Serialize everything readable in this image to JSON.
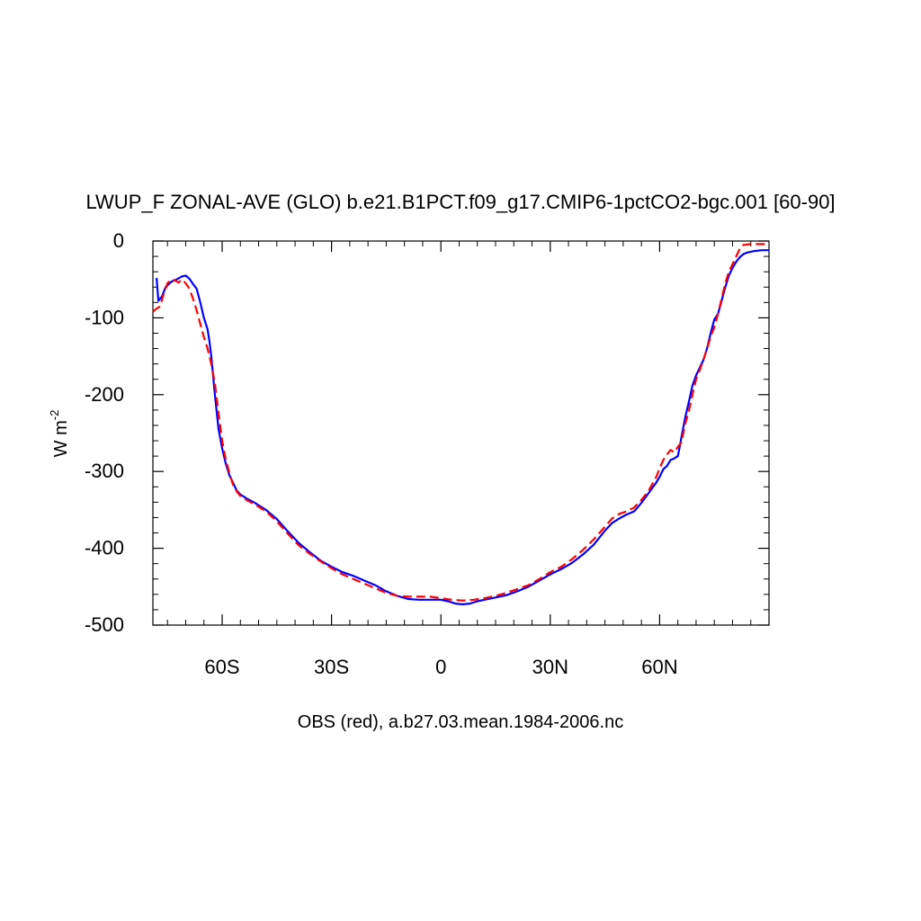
{
  "chart_data": {
    "type": "line",
    "title": "LWUP_F ZONAL-AVE (GLO) b.e21.B1PCT.f09_g17.CMIP6-1pctCO2-bgc.001 [60-90]",
    "xlabel": "OBS (red), a.b27.03.mean.1984-2006.nc",
    "ylabel_base": "W m",
    "ylabel_exponent": "-2",
    "xlim": [
      -79,
      90
    ],
    "ylim": [
      -500,
      0
    ],
    "x_ticks": [
      {
        "value": -60,
        "label": "60S"
      },
      {
        "value": -30,
        "label": "30S"
      },
      {
        "value": 0,
        "label": "0"
      },
      {
        "value": 30,
        "label": "30N"
      },
      {
        "value": 60,
        "label": "60N"
      }
    ],
    "y_ticks": [
      {
        "value": 0,
        "label": "0"
      },
      {
        "value": -100,
        "label": "-100"
      },
      {
        "value": -200,
        "label": "-200"
      },
      {
        "value": -300,
        "label": "-300"
      },
      {
        "value": -400,
        "label": "-400"
      },
      {
        "value": -500,
        "label": "-500"
      }
    ],
    "grid": false,
    "series": [
      {
        "color": "#0000ff",
        "dash": "solid",
        "points": [
          [
            -78,
            -48
          ],
          [
            -77.5,
            -78
          ],
          [
            -76.5,
            -72
          ],
          [
            -75.5,
            -60
          ],
          [
            -74,
            -53
          ],
          [
            -72.5,
            -50
          ],
          [
            -71,
            -46
          ],
          [
            -70,
            -45
          ],
          [
            -69,
            -49
          ],
          [
            -68,
            -56
          ],
          [
            -67,
            -62
          ],
          [
            -66,
            -80
          ],
          [
            -65,
            -100
          ],
          [
            -64,
            -115
          ],
          [
            -63.5,
            -130
          ],
          [
            -63,
            -150
          ],
          [
            -62,
            -200
          ],
          [
            -61,
            -245
          ],
          [
            -60,
            -270
          ],
          [
            -59,
            -290
          ],
          [
            -58,
            -305
          ],
          [
            -57,
            -315
          ],
          [
            -56,
            -325
          ],
          [
            -55,
            -330
          ],
          [
            -53,
            -336
          ],
          [
            -51,
            -341
          ],
          [
            -48,
            -350
          ],
          [
            -45,
            -362
          ],
          [
            -42,
            -378
          ],
          [
            -39,
            -393
          ],
          [
            -36,
            -405
          ],
          [
            -33,
            -416
          ],
          [
            -30,
            -424
          ],
          [
            -27,
            -431
          ],
          [
            -24,
            -436
          ],
          [
            -21,
            -442
          ],
          [
            -18,
            -448
          ],
          [
            -15,
            -456
          ],
          [
            -12,
            -462
          ],
          [
            -9,
            -466
          ],
          [
            -6,
            -467
          ],
          [
            -3,
            -467
          ],
          [
            0,
            -467
          ],
          [
            2,
            -469
          ],
          [
            4,
            -472
          ],
          [
            6,
            -473
          ],
          [
            8,
            -472
          ],
          [
            10,
            -469
          ],
          [
            12,
            -467
          ],
          [
            15,
            -464
          ],
          [
            18,
            -461
          ],
          [
            21,
            -456
          ],
          [
            24,
            -450
          ],
          [
            27,
            -442
          ],
          [
            30,
            -434
          ],
          [
            33,
            -427
          ],
          [
            36,
            -419
          ],
          [
            39,
            -408
          ],
          [
            42,
            -395
          ],
          [
            45,
            -377
          ],
          [
            47,
            -367
          ],
          [
            49,
            -361
          ],
          [
            51,
            -356
          ],
          [
            53,
            -352
          ],
          [
            55,
            -341
          ],
          [
            57,
            -328
          ],
          [
            59,
            -315
          ],
          [
            60,
            -307
          ],
          [
            61,
            -297
          ],
          [
            62,
            -293
          ],
          [
            63,
            -285
          ],
          [
            64,
            -283
          ],
          [
            65,
            -280
          ],
          [
            65.5,
            -268
          ],
          [
            66,
            -255
          ],
          [
            67,
            -230
          ],
          [
            68,
            -210
          ],
          [
            69,
            -188
          ],
          [
            70,
            -175
          ],
          [
            71,
            -165
          ],
          [
            72,
            -155
          ],
          [
            73,
            -140
          ],
          [
            74,
            -120
          ],
          [
            75,
            -102
          ],
          [
            76,
            -95
          ],
          [
            77,
            -78
          ],
          [
            78,
            -60
          ],
          [
            79,
            -45
          ],
          [
            80,
            -35
          ],
          [
            81,
            -27
          ],
          [
            82,
            -21
          ],
          [
            83,
            -17
          ],
          [
            84,
            -15
          ],
          [
            86,
            -13
          ],
          [
            88,
            -12
          ],
          [
            90,
            -12
          ]
        ]
      },
      {
        "color": "#ff0000",
        "dash": "dashed",
        "points": [
          [
            -79,
            -92
          ],
          [
            -78,
            -88
          ],
          [
            -77,
            -85
          ],
          [
            -76,
            -68
          ],
          [
            -75,
            -55
          ],
          [
            -74,
            -50
          ],
          [
            -73,
            -51
          ],
          [
            -72,
            -54
          ],
          [
            -71,
            -50
          ],
          [
            -70,
            -55
          ],
          [
            -69,
            -62
          ],
          [
            -68,
            -75
          ],
          [
            -67,
            -90
          ],
          [
            -66,
            -108
          ],
          [
            -65,
            -125
          ],
          [
            -64,
            -140
          ],
          [
            -63,
            -160
          ],
          [
            -62,
            -185
          ],
          [
            -61,
            -225
          ],
          [
            -60,
            -260
          ],
          [
            -59,
            -285
          ],
          [
            -58,
            -302
          ],
          [
            -57,
            -318
          ],
          [
            -56,
            -326
          ],
          [
            -55,
            -332
          ],
          [
            -53,
            -338
          ],
          [
            -51,
            -343
          ],
          [
            -48,
            -352
          ],
          [
            -45,
            -365
          ],
          [
            -42,
            -381
          ],
          [
            -39,
            -396
          ],
          [
            -36,
            -407
          ],
          [
            -33,
            -417
          ],
          [
            -30,
            -426
          ],
          [
            -27,
            -434
          ],
          [
            -24,
            -440
          ],
          [
            -21,
            -446
          ],
          [
            -18,
            -452
          ],
          [
            -15,
            -458
          ],
          [
            -12,
            -462
          ],
          [
            -9,
            -463
          ],
          [
            -6,
            -463
          ],
          [
            -3,
            -463
          ],
          [
            0,
            -465
          ],
          [
            3,
            -467
          ],
          [
            6,
            -468
          ],
          [
            9,
            -467
          ],
          [
            12,
            -465
          ],
          [
            15,
            -462
          ],
          [
            18,
            -458
          ],
          [
            21,
            -453
          ],
          [
            24,
            -448
          ],
          [
            27,
            -440
          ],
          [
            30,
            -431
          ],
          [
            33,
            -424
          ],
          [
            36,
            -414
          ],
          [
            39,
            -402
          ],
          [
            42,
            -388
          ],
          [
            45,
            -372
          ],
          [
            47,
            -361
          ],
          [
            49,
            -355
          ],
          [
            51,
            -352
          ],
          [
            53,
            -347
          ],
          [
            55,
            -337
          ],
          [
            57,
            -325
          ],
          [
            59,
            -308
          ],
          [
            60,
            -296
          ],
          [
            61,
            -285
          ],
          [
            62,
            -278
          ],
          [
            63,
            -272
          ],
          [
            64,
            -275
          ],
          [
            65,
            -268
          ],
          [
            66,
            -262
          ],
          [
            67,
            -238
          ],
          [
            68,
            -222
          ],
          [
            69,
            -200
          ],
          [
            70,
            -180
          ],
          [
            71,
            -168
          ],
          [
            72,
            -155
          ],
          [
            73,
            -140
          ],
          [
            74,
            -125
          ],
          [
            75,
            -112
          ],
          [
            76,
            -95
          ],
          [
            77,
            -75
          ],
          [
            78,
            -55
          ],
          [
            79,
            -40
          ],
          [
            80,
            -30
          ],
          [
            81,
            -20
          ],
          [
            82,
            -10
          ],
          [
            83,
            -5
          ],
          [
            85,
            -4
          ],
          [
            87,
            -4
          ],
          [
            90,
            -4
          ]
        ]
      }
    ]
  }
}
